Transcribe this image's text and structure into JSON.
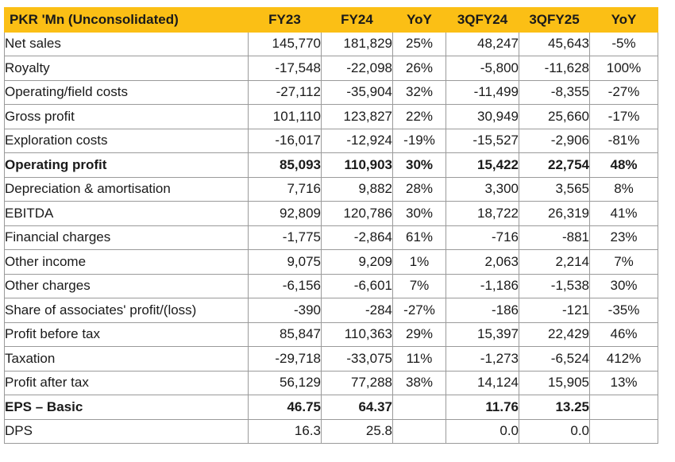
{
  "table": {
    "headers": [
      "PKR 'Mn (Unconsolidated)",
      "FY23",
      "FY24",
      "YoY",
      "3QFY24",
      "3QFY25",
      "YoY"
    ],
    "rows": [
      {
        "label": "Net sales",
        "bold": false,
        "values": [
          "145,770",
          "181,829",
          "25%",
          "48,247",
          "45,643",
          "-5%"
        ]
      },
      {
        "label": "Royalty",
        "bold": false,
        "values": [
          "-17,548",
          "-22,098",
          "26%",
          "-5,800",
          "-11,628",
          "100%"
        ]
      },
      {
        "label": "Operating/field costs",
        "bold": false,
        "values": [
          "-27,112",
          "-35,904",
          "32%",
          "-11,499",
          "-8,355",
          "-27%"
        ]
      },
      {
        "label": "Gross profit",
        "bold": false,
        "values": [
          "101,110",
          "123,827",
          "22%",
          "30,949",
          "25,660",
          "-17%"
        ]
      },
      {
        "label": "Exploration costs",
        "bold": false,
        "values": [
          "-16,017",
          "-12,924",
          "-19%",
          "-15,527",
          "-2,906",
          "-81%"
        ]
      },
      {
        "label": "Operating profit",
        "bold": true,
        "values": [
          "85,093",
          "110,903",
          "30%",
          "15,422",
          "22,754",
          "48%"
        ]
      },
      {
        "label": "Depreciation & amortisation",
        "bold": false,
        "values": [
          "7,716",
          "9,882",
          "28%",
          "3,300",
          "3,565",
          "8%"
        ]
      },
      {
        "label": "EBITDA",
        "bold": false,
        "values": [
          "92,809",
          "120,786",
          "30%",
          "18,722",
          "26,319",
          "41%"
        ]
      },
      {
        "label": "Financial charges",
        "bold": false,
        "values": [
          "-1,775",
          "-2,864",
          "61%",
          "-716",
          "-881",
          "23%"
        ]
      },
      {
        "label": "Other income",
        "bold": false,
        "values": [
          "9,075",
          "9,209",
          "1%",
          "2,063",
          "2,214",
          "7%"
        ]
      },
      {
        "label": "Other charges",
        "bold": false,
        "values": [
          "-6,156",
          "-6,601",
          "7%",
          "-1,186",
          "-1,538",
          "30%"
        ]
      },
      {
        "label": "Share of associates' profit/(loss)",
        "bold": false,
        "values": [
          "-390",
          "-284",
          "-27%",
          "-186",
          "-121",
          "-35%"
        ]
      },
      {
        "label": "Profit before tax",
        "bold": false,
        "values": [
          "85,847",
          "110,363",
          "29%",
          "15,397",
          "22,429",
          "46%"
        ]
      },
      {
        "label": "Taxation",
        "bold": false,
        "values": [
          "-29,718",
          "-33,075",
          "11%",
          "-1,273",
          "-6,524",
          "412%"
        ]
      },
      {
        "label": "Profit after tax",
        "bold": false,
        "values": [
          "56,129",
          "77,288",
          "38%",
          "14,124",
          "15,905",
          "13%"
        ]
      },
      {
        "label": "EPS – Basic",
        "bold": true,
        "values": [
          "46.75",
          "64.37",
          "",
          "11.76",
          "13.25",
          ""
        ]
      },
      {
        "label": "DPS",
        "bold": false,
        "values": [
          "16.3",
          "25.8",
          "",
          "0.0",
          "0.0",
          ""
        ]
      }
    ]
  },
  "colors": {
    "header_bg": "#fbbf15",
    "border": "#9a9a9a",
    "text": "#1a1a1a"
  }
}
